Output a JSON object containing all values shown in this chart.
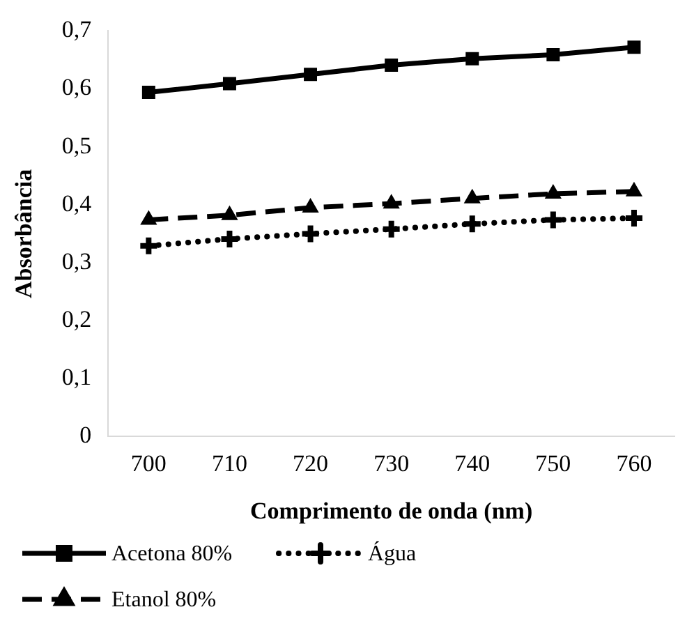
{
  "chart_data": {
    "type": "line",
    "xlabel": "Comprimento de onda (nm)",
    "ylabel": "Absorbância",
    "categories": [
      "700",
      "710",
      "720",
      "730",
      "740",
      "750",
      "760"
    ],
    "series": [
      {
        "name": "Acetona 80%",
        "color": "#000000",
        "marker": "square",
        "line_style": "solid",
        "values": [
          0.594,
          0.609,
          0.625,
          0.641,
          0.652,
          0.659,
          0.672
        ]
      },
      {
        "name": "Água",
        "color": "#000000",
        "marker": "cross",
        "line_style": "dotted",
        "values": [
          0.329,
          0.341,
          0.35,
          0.358,
          0.367,
          0.374,
          0.377
        ]
      },
      {
        "name": "Etanol 80%",
        "color": "#000000",
        "marker": "triangle",
        "line_style": "dashed",
        "values": [
          0.374,
          0.382,
          0.395,
          0.402,
          0.411,
          0.419,
          0.423
        ]
      }
    ],
    "ylim": [
      0,
      0.7
    ],
    "yticks": [
      0,
      {
        "value": 0.1,
        "label": "0,1"
      },
      {
        "value": 0.2,
        "label": "0,2"
      },
      {
        "value": 0.3,
        "label": "0,3"
      },
      {
        "value": 0.4,
        "label": "0,4"
      },
      {
        "value": 0.5,
        "label": "0,5"
      },
      {
        "value": 0.6,
        "label": "0,6"
      },
      {
        "value": 0.7,
        "label": "0,7"
      }
    ],
    "grid": false,
    "legend": "bottom"
  }
}
